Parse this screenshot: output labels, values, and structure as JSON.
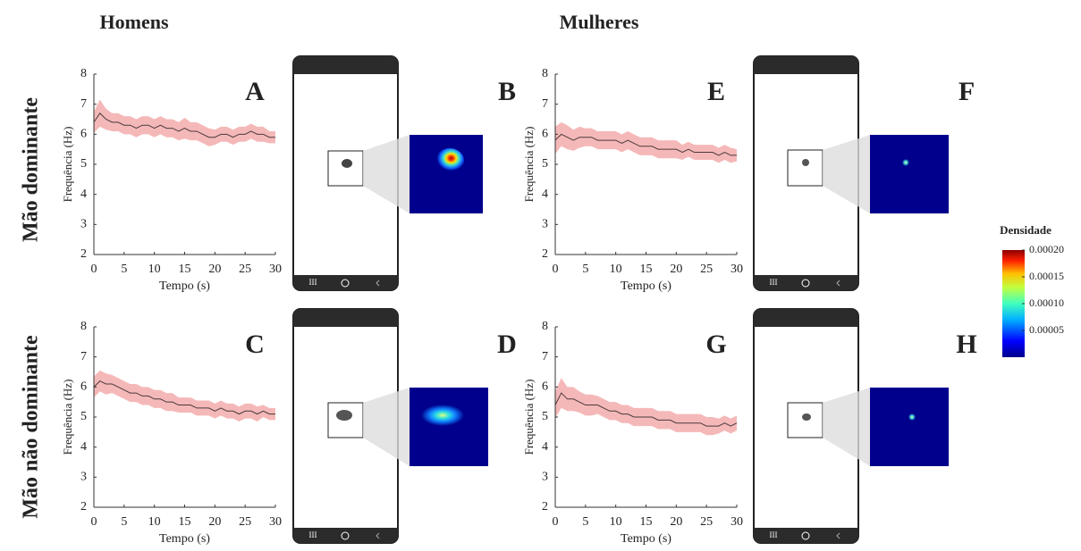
{
  "figure": {
    "columns": [
      "Homens",
      "Mulheres"
    ],
    "rows": [
      "Mão dominante",
      "Mão não dominante"
    ],
    "image_panels": [
      "B",
      "F",
      "D",
      "H"
    ]
  },
  "chart_data": [
    {
      "type": "line",
      "panel_label": "A",
      "xlabel": "Tempo (s)",
      "ylabel": "Frequência (Hz)",
      "x": [
        0,
        1,
        2,
        3,
        4,
        5,
        6,
        7,
        8,
        9,
        10,
        11,
        12,
        13,
        14,
        15,
        16,
        17,
        18,
        19,
        20,
        21,
        22,
        23,
        24,
        25,
        26,
        27,
        28,
        29,
        30
      ],
      "values": [
        6.4,
        6.7,
        6.5,
        6.4,
        6.4,
        6.3,
        6.3,
        6.2,
        6.3,
        6.3,
        6.2,
        6.3,
        6.2,
        6.2,
        6.1,
        6.2,
        6.1,
        6.1,
        6.0,
        5.9,
        5.9,
        6.0,
        6.0,
        5.9,
        6.0,
        6.0,
        6.1,
        6.0,
        6.0,
        5.9,
        5.9
      ],
      "error": [
        0.35,
        0.45,
        0.35,
        0.3,
        0.3,
        0.3,
        0.3,
        0.3,
        0.3,
        0.3,
        0.3,
        0.3,
        0.3,
        0.3,
        0.3,
        0.35,
        0.3,
        0.3,
        0.3,
        0.3,
        0.25,
        0.25,
        0.25,
        0.25,
        0.25,
        0.25,
        0.25,
        0.25,
        0.25,
        0.2,
        0.2
      ],
      "color": "#4a3a3a",
      "band_color": "#f2a0a0",
      "xlim": [
        0,
        30
      ],
      "ylim": [
        2,
        8
      ],
      "xticks": [
        0,
        5,
        10,
        15,
        20,
        25,
        30
      ],
      "yticks": [
        2,
        3,
        4,
        5,
        6,
        7,
        8
      ]
    },
    {
      "type": "line",
      "panel_label": "E",
      "xlabel": "Tempo (s)",
      "ylabel": "Frequência (Hz)",
      "x": [
        0,
        1,
        2,
        3,
        4,
        5,
        6,
        7,
        8,
        9,
        10,
        11,
        12,
        13,
        14,
        15,
        16,
        17,
        18,
        19,
        20,
        21,
        22,
        23,
        24,
        25,
        26,
        27,
        28,
        29,
        30
      ],
      "values": [
        5.8,
        6.0,
        5.9,
        5.8,
        5.9,
        5.9,
        5.9,
        5.8,
        5.8,
        5.8,
        5.8,
        5.7,
        5.8,
        5.7,
        5.6,
        5.6,
        5.6,
        5.5,
        5.5,
        5.5,
        5.5,
        5.4,
        5.5,
        5.4,
        5.4,
        5.4,
        5.4,
        5.3,
        5.4,
        5.3,
        5.3
      ],
      "error": [
        0.45,
        0.4,
        0.4,
        0.35,
        0.35,
        0.3,
        0.3,
        0.3,
        0.3,
        0.3,
        0.3,
        0.3,
        0.3,
        0.3,
        0.3,
        0.3,
        0.3,
        0.3,
        0.3,
        0.3,
        0.3,
        0.25,
        0.25,
        0.25,
        0.25,
        0.25,
        0.25,
        0.25,
        0.25,
        0.25,
        0.2
      ],
      "color": "#4a3a3a",
      "band_color": "#f2a0a0",
      "xlim": [
        0,
        30
      ],
      "ylim": [
        2,
        8
      ],
      "xticks": [
        0,
        5,
        10,
        15,
        20,
        25,
        30
      ],
      "yticks": [
        2,
        3,
        4,
        5,
        6,
        7,
        8
      ]
    },
    {
      "type": "line",
      "panel_label": "C",
      "xlabel": "Tempo (s)",
      "ylabel": "Frequência (Hz)",
      "x": [
        0,
        1,
        2,
        3,
        4,
        5,
        6,
        7,
        8,
        9,
        10,
        11,
        12,
        13,
        14,
        15,
        16,
        17,
        18,
        19,
        20,
        21,
        22,
        23,
        24,
        25,
        26,
        27,
        28,
        29,
        30
      ],
      "values": [
        6.0,
        6.2,
        6.1,
        6.1,
        6.0,
        5.9,
        5.8,
        5.8,
        5.7,
        5.7,
        5.6,
        5.6,
        5.5,
        5.5,
        5.4,
        5.4,
        5.4,
        5.3,
        5.3,
        5.3,
        5.2,
        5.3,
        5.2,
        5.2,
        5.1,
        5.2,
        5.2,
        5.1,
        5.2,
        5.1,
        5.1
      ],
      "error": [
        0.35,
        0.35,
        0.35,
        0.3,
        0.3,
        0.3,
        0.3,
        0.3,
        0.3,
        0.3,
        0.3,
        0.3,
        0.3,
        0.3,
        0.25,
        0.25,
        0.25,
        0.25,
        0.25,
        0.25,
        0.25,
        0.25,
        0.25,
        0.25,
        0.25,
        0.25,
        0.25,
        0.25,
        0.2,
        0.2,
        0.2
      ],
      "color": "#4a3a3a",
      "band_color": "#f2a0a0",
      "xlim": [
        0,
        30
      ],
      "ylim": [
        2,
        8
      ],
      "xticks": [
        0,
        5,
        10,
        15,
        20,
        25,
        30
      ],
      "yticks": [
        2,
        3,
        4,
        5,
        6,
        7,
        8
      ]
    },
    {
      "type": "line",
      "panel_label": "G",
      "xlabel": "Tempo (s)",
      "ylabel": "Frequência (Hz)",
      "x": [
        0,
        1,
        2,
        3,
        4,
        5,
        6,
        7,
        8,
        9,
        10,
        11,
        12,
        13,
        14,
        15,
        16,
        17,
        18,
        19,
        20,
        21,
        22,
        23,
        24,
        25,
        26,
        27,
        28,
        29,
        30
      ],
      "values": [
        5.4,
        5.8,
        5.6,
        5.6,
        5.5,
        5.4,
        5.4,
        5.4,
        5.3,
        5.2,
        5.2,
        5.1,
        5.1,
        5.0,
        5.0,
        5.0,
        5.0,
        4.9,
        4.9,
        4.9,
        4.8,
        4.8,
        4.8,
        4.8,
        4.8,
        4.7,
        4.7,
        4.7,
        4.8,
        4.7,
        4.8
      ],
      "error": [
        0.45,
        0.5,
        0.4,
        0.4,
        0.35,
        0.35,
        0.35,
        0.3,
        0.3,
        0.3,
        0.3,
        0.3,
        0.3,
        0.3,
        0.3,
        0.3,
        0.3,
        0.3,
        0.3,
        0.3,
        0.3,
        0.3,
        0.3,
        0.3,
        0.3,
        0.3,
        0.3,
        0.25,
        0.25,
        0.25,
        0.25
      ],
      "color": "#4a3a3a",
      "band_color": "#f2a0a0",
      "xlim": [
        0,
        30
      ],
      "ylim": [
        2,
        8
      ],
      "xticks": [
        0,
        5,
        10,
        15,
        20,
        25,
        30
      ],
      "yticks": [
        2,
        3,
        4,
        5,
        6,
        7,
        8
      ]
    }
  ],
  "colorbar": {
    "title": "Densidade",
    "ylim": [
      0,
      0.0002
    ],
    "yticks": [
      {
        "value": 0.0002,
        "label": "0.00020"
      },
      0.00015,
      {
        "value": 0.0001,
        "label": "0.00010"
      },
      5e-05
    ]
  }
}
